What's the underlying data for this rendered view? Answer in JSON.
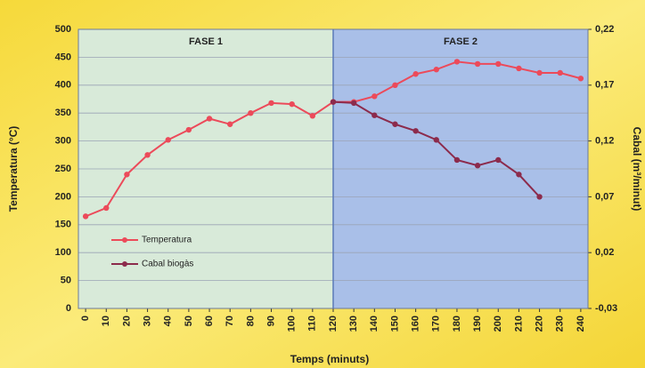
{
  "chart_data": {
    "type": "line",
    "x_label": "Temps (minuts)",
    "y_label": "Temperatura (°C)",
    "y2_label": "Cabal (m³/minut)",
    "x": [
      0,
      10,
      20,
      30,
      40,
      50,
      60,
      70,
      80,
      90,
      100,
      110,
      120,
      130,
      140,
      150,
      160,
      170,
      180,
      190,
      200,
      210,
      220,
      230,
      240
    ],
    "xlim": [
      -3.5,
      243.5
    ],
    "xticks": [
      0,
      10,
      20,
      30,
      40,
      50,
      60,
      70,
      80,
      90,
      100,
      110,
      120,
      130,
      140,
      150,
      160,
      170,
      180,
      190,
      200,
      210,
      220,
      230,
      240
    ],
    "ylim": [
      0,
      500
    ],
    "yticks": [
      0,
      50,
      100,
      150,
      200,
      250,
      300,
      350,
      400,
      450,
      500
    ],
    "y2lim": [
      -0.03,
      0.22
    ],
    "y2ticks": [
      {
        "value": -0.03,
        "label": "-0,03"
      },
      {
        "value": 0.02,
        "label": "0,02"
      },
      {
        "value": 0.07,
        "label": "0,07"
      },
      {
        "value": 0.12,
        "label": "0,12"
      },
      {
        "value": 0.17,
        "label": "0,17"
      },
      {
        "value": 0.22,
        "label": "0,22"
      }
    ],
    "grid": true,
    "phase_split": 120,
    "phases": [
      {
        "name": "FASE 1",
        "color": "#d8ead9"
      },
      {
        "name": "FASE 2",
        "color": "#a9bfe8"
      }
    ],
    "legend": "lower left",
    "series": [
      {
        "name": "Temperatura",
        "color": "#ec4a5a",
        "values": [
          165,
          180,
          240,
          275,
          302,
          320,
          340,
          330,
          350,
          368,
          366,
          345,
          370,
          370,
          380,
          400,
          420,
          428,
          442,
          438,
          438,
          430,
          422,
          422,
          412
        ]
      },
      {
        "name": "Cabal biogàs",
        "color": "#8c2b4c",
        "axis": "y2",
        "values": [
          null,
          null,
          null,
          null,
          null,
          null,
          null,
          null,
          null,
          null,
          null,
          null,
          0.155,
          0.154,
          0.143,
          0.135,
          0.129,
          0.121,
          0.103,
          0.098,
          0.103,
          0.09,
          0.07,
          null,
          null
        ]
      }
    ]
  }
}
